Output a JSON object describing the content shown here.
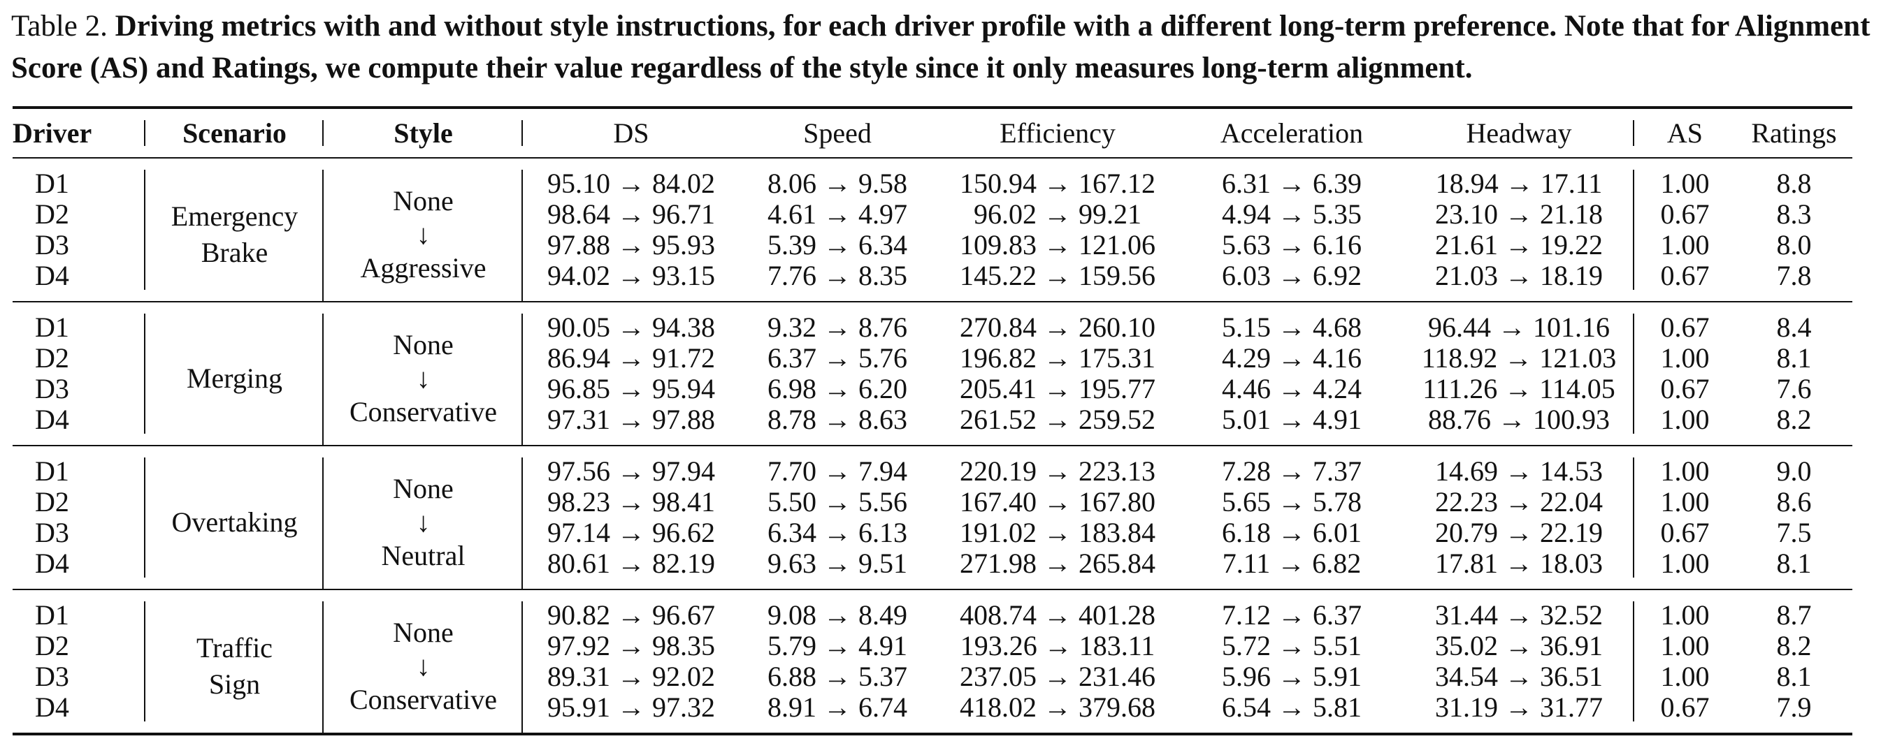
{
  "caption": {
    "label": "Table 2.",
    "text": "Driving metrics with and without style instructions, for each driver profile with a different long-term preference. Note that for Alignment Score (AS) and Ratings, we compute their value regardless of the style since it only measures long-term alignment."
  },
  "headers": {
    "driver": "Driver",
    "scenario": "Scenario",
    "style": "Style",
    "ds": "DS",
    "speed": "Speed",
    "efficiency": "Efficiency",
    "acceleration": "Acceleration",
    "headway": "Headway",
    "as": "AS",
    "ratings": "Ratings"
  },
  "groups": [
    {
      "scenario_lines": [
        "Emergency",
        "Brake"
      ],
      "style_from": "None",
      "style_arrow": "↓",
      "style_to": "Aggressive",
      "rows": [
        {
          "driver": "D1",
          "ds": "95.10 → 84.02",
          "speed": "8.06 → 9.58",
          "efficiency": "150.94 → 167.12",
          "acceleration": "6.31 → 6.39",
          "headway": "18.94 → 17.11",
          "as": "1.00",
          "ratings": "8.8"
        },
        {
          "driver": "D2",
          "ds": "98.64 → 96.71",
          "speed": "4.61 → 4.97",
          "efficiency": "96.02 → 99.21",
          "acceleration": "4.94 → 5.35",
          "headway": "23.10 → 21.18",
          "as": "0.67",
          "ratings": "8.3"
        },
        {
          "driver": "D3",
          "ds": "97.88 → 95.93",
          "speed": "5.39 → 6.34",
          "efficiency": "109.83 → 121.06",
          "acceleration": "5.63 → 6.16",
          "headway": "21.61 → 19.22",
          "as": "1.00",
          "ratings": "8.0"
        },
        {
          "driver": "D4",
          "ds": "94.02 → 93.15",
          "speed": "7.76 → 8.35",
          "efficiency": "145.22 → 159.56",
          "acceleration": "6.03 → 6.92",
          "headway": "21.03 → 18.19",
          "as": "0.67",
          "ratings": "7.8"
        }
      ]
    },
    {
      "scenario_lines": [
        "Merging"
      ],
      "style_from": "None",
      "style_arrow": "↓",
      "style_to": "Conservative",
      "rows": [
        {
          "driver": "D1",
          "ds": "90.05 → 94.38",
          "speed": "9.32 → 8.76",
          "efficiency": "270.84 → 260.10",
          "acceleration": "5.15 → 4.68",
          "headway": "96.44 → 101.16",
          "as": "0.67",
          "ratings": "8.4"
        },
        {
          "driver": "D2",
          "ds": "86.94 → 91.72",
          "speed": "6.37 → 5.76",
          "efficiency": "196.82 → 175.31",
          "acceleration": "4.29 → 4.16",
          "headway": "118.92 → 121.03",
          "as": "1.00",
          "ratings": "8.1"
        },
        {
          "driver": "D3",
          "ds": "96.85 → 95.94",
          "speed": "6.98 → 6.20",
          "efficiency": "205.41 → 195.77",
          "acceleration": "4.46 → 4.24",
          "headway": "111.26 → 114.05",
          "as": "0.67",
          "ratings": "7.6"
        },
        {
          "driver": "D4",
          "ds": "97.31 → 97.88",
          "speed": "8.78 → 8.63",
          "efficiency": "261.52 → 259.52",
          "acceleration": "5.01 → 4.91",
          "headway": "88.76 → 100.93",
          "as": "1.00",
          "ratings": "8.2"
        }
      ]
    },
    {
      "scenario_lines": [
        "Overtaking"
      ],
      "style_from": "None",
      "style_arrow": "↓",
      "style_to": "Neutral",
      "rows": [
        {
          "driver": "D1",
          "ds": "97.56 → 97.94",
          "speed": "7.70 → 7.94",
          "efficiency": "220.19 → 223.13",
          "acceleration": "7.28 → 7.37",
          "headway": "14.69 → 14.53",
          "as": "1.00",
          "ratings": "9.0"
        },
        {
          "driver": "D2",
          "ds": "98.23 → 98.41",
          "speed": "5.50 → 5.56",
          "efficiency": "167.40 → 167.80",
          "acceleration": "5.65 → 5.78",
          "headway": "22.23 → 22.04",
          "as": "1.00",
          "ratings": "8.6"
        },
        {
          "driver": "D3",
          "ds": "97.14 → 96.62",
          "speed": "6.34 → 6.13",
          "efficiency": "191.02 → 183.84",
          "acceleration": "6.18 → 6.01",
          "headway": "20.79 → 22.19",
          "as": "0.67",
          "ratings": "7.5"
        },
        {
          "driver": "D4",
          "ds": "80.61 → 82.19",
          "speed": "9.63 → 9.51",
          "efficiency": "271.98 → 265.84",
          "acceleration": "7.11 → 6.82",
          "headway": "17.81 → 18.03",
          "as": "1.00",
          "ratings": "8.1"
        }
      ]
    },
    {
      "scenario_lines": [
        "Traffic",
        "Sign"
      ],
      "style_from": "None",
      "style_arrow": "↓",
      "style_to": "Conservative",
      "rows": [
        {
          "driver": "D1",
          "ds": "90.82 → 96.67",
          "speed": "9.08 → 8.49",
          "efficiency": "408.74 → 401.28",
          "acceleration": "7.12 → 6.37",
          "headway": "31.44 → 32.52",
          "as": "1.00",
          "ratings": "8.7"
        },
        {
          "driver": "D2",
          "ds": "97.92 → 98.35",
          "speed": "5.79 → 4.91",
          "efficiency": "193.26 → 183.11",
          "acceleration": "5.72 → 5.51",
          "headway": "35.02 → 36.91",
          "as": "1.00",
          "ratings": "8.2"
        },
        {
          "driver": "D3",
          "ds": "89.31 → 92.02",
          "speed": "6.88 → 5.37",
          "efficiency": "237.05 → 231.46",
          "acceleration": "5.96 → 5.91",
          "headway": "34.54 → 36.51",
          "as": "1.00",
          "ratings": "8.1"
        },
        {
          "driver": "D4",
          "ds": "95.91 → 97.32",
          "speed": "8.91 → 6.74",
          "efficiency": "418.02 → 379.68",
          "acceleration": "6.54 → 5.81",
          "headway": "31.19 → 31.77",
          "as": "0.67",
          "ratings": "7.9"
        }
      ]
    }
  ]
}
